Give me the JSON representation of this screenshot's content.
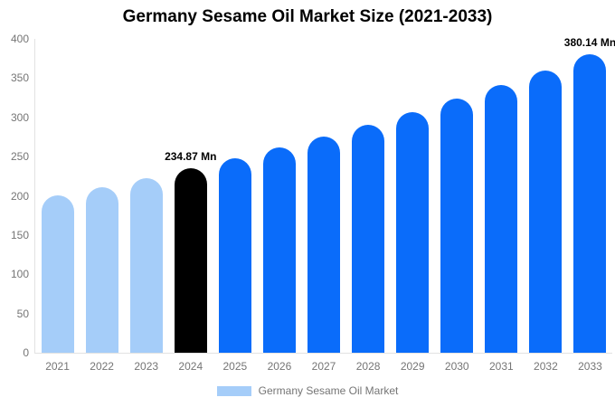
{
  "chart_data": {
    "type": "bar",
    "title": "Germany Sesame Oil Market Size (2021-2033)",
    "categories": [
      "2021",
      "2022",
      "2023",
      "2024",
      "2025",
      "2026",
      "2027",
      "2028",
      "2029",
      "2030",
      "2031",
      "2032",
      "2033"
    ],
    "values": [
      200.1,
      211.1,
      222.7,
      234.87,
      247.76,
      261.36,
      275.71,
      290.84,
      306.81,
      323.65,
      341.41,
      360.15,
      380.14
    ],
    "unit": "Mn",
    "xlabel": "",
    "ylabel": "",
    "ylim": [
      0,
      400
    ],
    "y_ticks": [
      0,
      50,
      100,
      150,
      200,
      250,
      300,
      350,
      400
    ],
    "grid": false,
    "bar_roles": [
      "historical",
      "historical",
      "historical",
      "base_year",
      "forecast",
      "forecast",
      "forecast",
      "forecast",
      "forecast",
      "forecast",
      "forecast",
      "forecast",
      "forecast"
    ],
    "role_colors": {
      "historical": "#A5CDF9",
      "base_year": "#000000",
      "forecast": "#0A6CFA"
    },
    "annotations": [
      {
        "category": "2024",
        "text": "234.87 Mn"
      },
      {
        "category": "2033",
        "text": "380.14 Mn"
      }
    ],
    "legend": {
      "position": "bottom",
      "label": "Germany Sesame Oil Market",
      "swatch_color": "#A5CDF9"
    },
    "axis_text_color": "#757575",
    "axis_line_color": "#e2e2e2",
    "background_color": "#ffffff"
  }
}
